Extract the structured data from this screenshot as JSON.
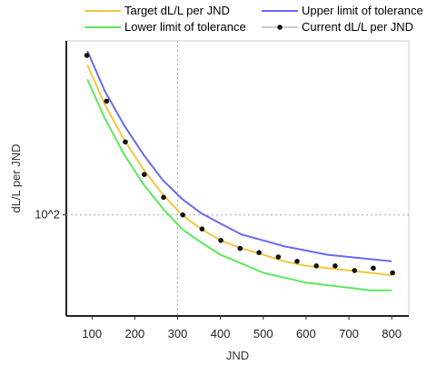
{
  "chart_data": {
    "type": "line",
    "title": "",
    "xlabel": "JND",
    "ylabel": "dL/L per JND",
    "xlim": [
      40,
      840
    ],
    "log_y": true,
    "ylim": [
      55,
      280
    ],
    "x_ticks": [
      100,
      200,
      300,
      400,
      500,
      600,
      700,
      800
    ],
    "y_tick_values": [
      100
    ],
    "y_tick_labels": [
      "10^2"
    ],
    "grid": "dotted guides at x=300 and y=100",
    "legend_position": "top",
    "series": [
      {
        "name": "Target dL/L per JND",
        "style": "line",
        "color": "#f5c542",
        "x": [
          89,
          130,
          175,
          220,
          265,
          310,
          355,
          400,
          450,
          500,
          550,
          600,
          650,
          700,
          750,
          800
        ],
        "y": [
          243,
          192,
          156,
          131,
          113,
          100,
          92,
          86,
          82,
          79,
          76,
          74,
          73,
          72,
          71,
          70
        ]
      },
      {
        "name": "Upper limit of tolerance",
        "style": "line",
        "color": "#6a6af0",
        "x": [
          89,
          130,
          175,
          220,
          265,
          310,
          355,
          400,
          450,
          500,
          550,
          600,
          650,
          700,
          750,
          800
        ],
        "y": [
          264,
          208,
          170,
          143,
          123,
          110,
          101,
          95,
          89,
          86,
          83,
          81,
          79,
          78,
          77,
          76
        ]
      },
      {
        "name": "Lower limit of tolerance",
        "style": "line",
        "color": "#5ee85e",
        "x": [
          89,
          130,
          175,
          220,
          265,
          310,
          355,
          400,
          450,
          500,
          550,
          600,
          650,
          700,
          750,
          800
        ],
        "y": [
          223,
          177,
          143,
          120,
          104,
          92,
          85,
          79,
          75,
          71,
          69,
          67,
          66,
          65,
          64,
          64
        ]
      },
      {
        "name": "Current dL/L per JND",
        "style": "line-markers",
        "color": "#111111",
        "line_color": "#bbbbbb",
        "x": [
          88,
          134,
          178,
          222,
          267,
          312,
          357,
          401,
          446,
          490,
          535,
          579,
          624,
          668,
          713,
          757,
          802
        ],
        "y": [
          257,
          196,
          154,
          127,
          111,
          100,
          92,
          86,
          82,
          80,
          78,
          76,
          74,
          74,
          72,
          73,
          71
        ]
      }
    ]
  }
}
